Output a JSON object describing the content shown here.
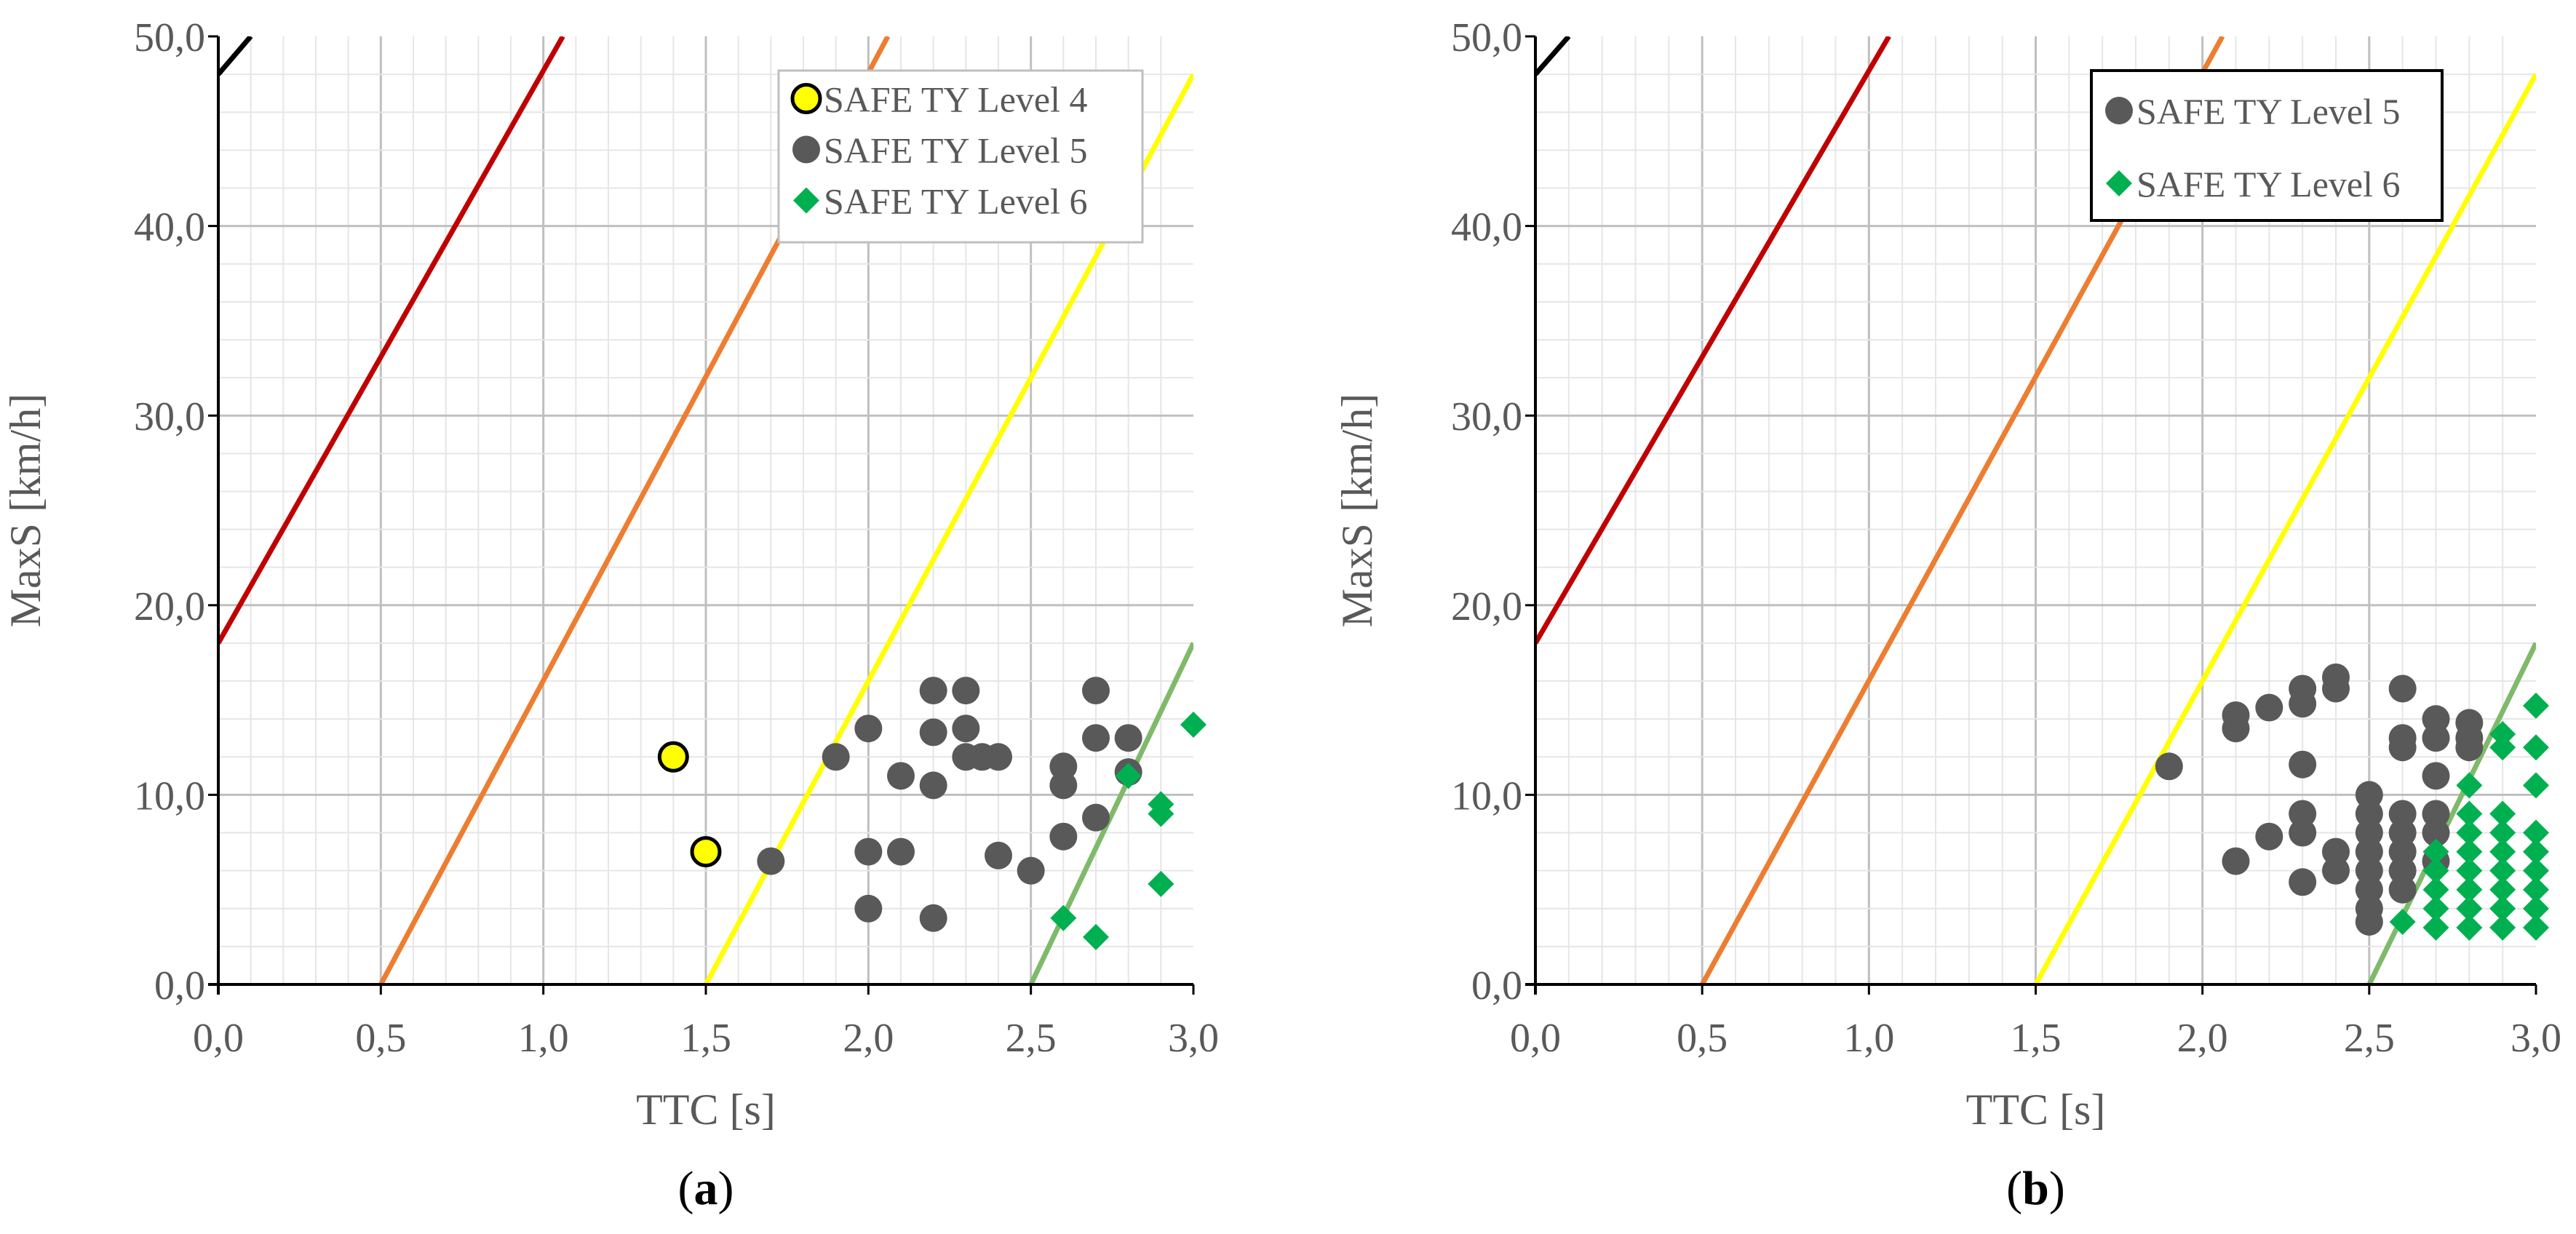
{
  "panels": [
    {
      "caption_letter": "a",
      "chart_data": {
        "type": "scatter",
        "xlabel": "TTC [s]",
        "ylabel": "MaxS [km/h]",
        "xlim": [
          0,
          3
        ],
        "ylim": [
          0,
          50
        ],
        "xticks": [
          "0,0",
          "0,5",
          "1,0",
          "1,5",
          "2,0",
          "2,5",
          "3,0"
        ],
        "yticks": [
          "0,0",
          "10,0",
          "20,0",
          "30,0",
          "40,0",
          "50,0"
        ],
        "grid": true,
        "legend_position": "top-right",
        "boundary_lines": [
          {
            "color": "#000000",
            "points": [
              [
                0,
                48
              ],
              [
                0.1,
                50
              ]
            ]
          },
          {
            "color": "#C00000",
            "points": [
              [
                0,
                18
              ],
              [
                1.06,
                50
              ]
            ]
          },
          {
            "color": "#ED7D31",
            "points": [
              [
                0.5,
                0
              ],
              [
                2.06,
                50
              ]
            ]
          },
          {
            "color": "#FFFF00",
            "points": [
              [
                1.5,
                0
              ],
              [
                3.0,
                48
              ]
            ]
          },
          {
            "color": "#7FBA6A",
            "points": [
              [
                2.5,
                0
              ],
              [
                3.0,
                18
              ]
            ]
          }
        ],
        "series": [
          {
            "name": "SAFE TY Level 4",
            "marker": "circle-outlined",
            "color": "#FFFF00",
            "points": [
              [
                1.4,
                12.0
              ],
              [
                1.5,
                7.0
              ]
            ]
          },
          {
            "name": "SAFE TY Level 5",
            "marker": "circle",
            "color": "#595959",
            "points": [
              [
                1.7,
                6.5
              ],
              [
                1.9,
                12.0
              ],
              [
                2.0,
                13.5
              ],
              [
                2.0,
                7.0
              ],
              [
                2.0,
                4.0
              ],
              [
                2.1,
                11.0
              ],
              [
                2.1,
                7.0
              ],
              [
                2.2,
                15.5
              ],
              [
                2.2,
                13.3
              ],
              [
                2.2,
                10.5
              ],
              [
                2.2,
                3.5
              ],
              [
                2.3,
                15.5
              ],
              [
                2.3,
                13.5
              ],
              [
                2.3,
                12.0
              ],
              [
                2.35,
                12.0
              ],
              [
                2.4,
                12.0
              ],
              [
                2.4,
                6.8
              ],
              [
                2.5,
                6.0
              ],
              [
                2.6,
                11.5
              ],
              [
                2.6,
                10.5
              ],
              [
                2.6,
                7.8
              ],
              [
                2.7,
                15.5
              ],
              [
                2.7,
                13.0
              ],
              [
                2.7,
                8.8
              ],
              [
                2.8,
                13.0
              ],
              [
                2.8,
                11.2
              ]
            ]
          },
          {
            "name": "SAFE TY Level 6",
            "marker": "diamond",
            "color": "#00B050",
            "points": [
              [
                2.6,
                3.5
              ],
              [
                2.7,
                2.5
              ],
              [
                2.8,
                11.0
              ],
              [
                2.9,
                9.5
              ],
              [
                2.9,
                9.0
              ],
              [
                2.9,
                5.3
              ],
              [
                3.0,
                13.7
              ]
            ]
          }
        ]
      }
    },
    {
      "caption_letter": "b",
      "chart_data": {
        "type": "scatter",
        "xlabel": "TTC [s]",
        "ylabel": "MaxS [km/h]",
        "xlim": [
          0,
          3
        ],
        "ylim": [
          0,
          50
        ],
        "xticks": [
          "0,0",
          "0,5",
          "1,0",
          "1,5",
          "2,0",
          "2,5",
          "3,0"
        ],
        "yticks": [
          "0,0",
          "10,0",
          "20,0",
          "30,0",
          "40,0",
          "50,0"
        ],
        "grid": true,
        "legend_position": "top-right",
        "boundary_lines": [
          {
            "color": "#000000",
            "points": [
              [
                0,
                48
              ],
              [
                0.1,
                50
              ]
            ]
          },
          {
            "color": "#C00000",
            "points": [
              [
                0,
                18
              ],
              [
                1.06,
                50
              ]
            ]
          },
          {
            "color": "#ED7D31",
            "points": [
              [
                0.5,
                0
              ],
              [
                2.06,
                50
              ]
            ]
          },
          {
            "color": "#FFFF00",
            "points": [
              [
                1.5,
                0
              ],
              [
                3.0,
                48
              ]
            ]
          },
          {
            "color": "#7FBA6A",
            "points": [
              [
                2.5,
                0
              ],
              [
                3.0,
                18
              ]
            ]
          }
        ],
        "series": [
          {
            "name": "SAFE TY Level 5",
            "marker": "circle",
            "color": "#595959",
            "points": [
              [
                1.9,
                11.5
              ],
              [
                2.1,
                14.2
              ],
              [
                2.1,
                13.5
              ],
              [
                2.1,
                6.5
              ],
              [
                2.2,
                14.6
              ],
              [
                2.2,
                7.8
              ],
              [
                2.3,
                15.6
              ],
              [
                2.3,
                14.8
              ],
              [
                2.3,
                11.6
              ],
              [
                2.3,
                9.0
              ],
              [
                2.3,
                8.0
              ],
              [
                2.3,
                5.4
              ],
              [
                2.4,
                16.2
              ],
              [
                2.4,
                15.6
              ],
              [
                2.4,
                7.0
              ],
              [
                2.4,
                6.0
              ],
              [
                2.5,
                10.0
              ],
              [
                2.5,
                9.0
              ],
              [
                2.5,
                8.0
              ],
              [
                2.5,
                7.0
              ],
              [
                2.5,
                6.0
              ],
              [
                2.5,
                5.0
              ],
              [
                2.5,
                4.0
              ],
              [
                2.5,
                3.3
              ],
              [
                2.6,
                15.6
              ],
              [
                2.6,
                13.0
              ],
              [
                2.6,
                12.5
              ],
              [
                2.6,
                9.0
              ],
              [
                2.6,
                8.0
              ],
              [
                2.6,
                7.0
              ],
              [
                2.6,
                6.0
              ],
              [
                2.6,
                5.0
              ],
              [
                2.7,
                14.0
              ],
              [
                2.7,
                13.0
              ],
              [
                2.7,
                11.0
              ],
              [
                2.7,
                9.0
              ],
              [
                2.7,
                8.0
              ],
              [
                2.7,
                6.5
              ],
              [
                2.8,
                13.8
              ],
              [
                2.8,
                13.0
              ],
              [
                2.8,
                12.5
              ]
            ]
          },
          {
            "name": "SAFE TY Level 6",
            "marker": "diamond",
            "color": "#00B050",
            "points": [
              [
                2.6,
                3.3
              ],
              [
                2.7,
                3.0
              ],
              [
                2.7,
                4.0
              ],
              [
                2.7,
                5.0
              ],
              [
                2.7,
                6.0
              ],
              [
                2.7,
                7.0
              ],
              [
                2.8,
                3.0
              ],
              [
                2.8,
                4.0
              ],
              [
                2.8,
                5.0
              ],
              [
                2.8,
                6.0
              ],
              [
                2.8,
                7.0
              ],
              [
                2.8,
                8.0
              ],
              [
                2.8,
                9.0
              ],
              [
                2.8,
                10.5
              ],
              [
                2.9,
                3.0
              ],
              [
                2.9,
                4.0
              ],
              [
                2.9,
                5.0
              ],
              [
                2.9,
                6.0
              ],
              [
                2.9,
                7.0
              ],
              [
                2.9,
                8.0
              ],
              [
                2.9,
                9.0
              ],
              [
                2.9,
                12.5
              ],
              [
                2.9,
                13.2
              ],
              [
                3.0,
                3.0
              ],
              [
                3.0,
                4.0
              ],
              [
                3.0,
                5.0
              ],
              [
                3.0,
                6.0
              ],
              [
                3.0,
                7.0
              ],
              [
                3.0,
                8.0
              ],
              [
                3.0,
                10.5
              ],
              [
                3.0,
                12.5
              ],
              [
                3.0,
                14.7
              ]
            ]
          }
        ]
      }
    }
  ]
}
